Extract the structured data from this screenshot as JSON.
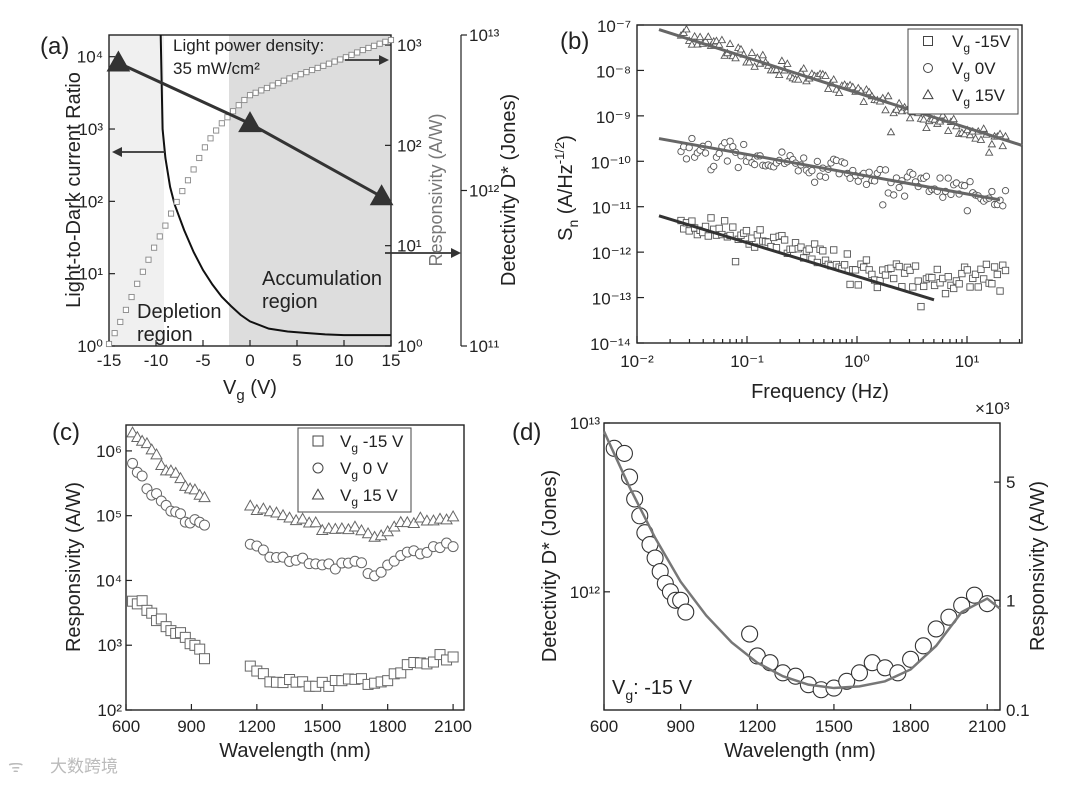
{
  "watermark": "大数跨境",
  "chart_data": [
    {
      "panel": "a",
      "panel_label": "(a)",
      "type": "line",
      "xlabel": "V",
      "xlabel_sub": "g",
      "xlabel_unit": " (V)",
      "ylabel_left": "Light-to-Dark current Ratio",
      "ylabel_right1": "Responsivity (A/W)",
      "ylabel_right2": "Detectivity D* (Jones)",
      "xlim": [
        -15,
        15
      ],
      "xticks": [
        "-15",
        "-10",
        "-5",
        "0",
        "5",
        "10",
        "15"
      ],
      "ylim_left_log10": [
        0,
        4.3
      ],
      "yticks_left": [
        "10⁰",
        "10¹",
        "10²",
        "10³",
        "10⁴"
      ],
      "yticks_right1": [
        "10⁰",
        "10¹",
        "10²",
        "10³"
      ],
      "yticks_right2": [
        "10¹¹",
        "10¹²",
        "10¹³"
      ],
      "annotation_power_1": "Light power density:",
      "annotation_power_2": "35 mW/cm²",
      "region_depletion_1": "Depletion",
      "region_depletion_2": "region",
      "region_accumulation_1": "Accumulation",
      "region_accumulation_2": "region",
      "shaded_regions": [
        {
          "from": -15,
          "to": -9.5,
          "shade": "#f0f0f0"
        },
        {
          "from": -2.5,
          "to": 15,
          "shade": "#dddddd"
        }
      ],
      "series": [
        {
          "name": "Light-to-Dark current Ratio",
          "axis": "left",
          "style": "solid-black",
          "x": [
            -9.5,
            -9.3,
            -9,
            -8.5,
            -8,
            -7,
            -6,
            -5,
            -4,
            -3,
            -2,
            -1,
            0,
            2,
            4,
            6,
            8,
            10,
            12,
            15
          ],
          "y": [
            4.3,
            3.0,
            2.6,
            2.2,
            1.95,
            1.6,
            1.3,
            1.05,
            0.85,
            0.68,
            0.55,
            0.43,
            0.34,
            0.24,
            0.2,
            0.18,
            0.16,
            0.15,
            0.15,
            0.15
          ]
        },
        {
          "name": "Responsivity",
          "axis": "right1",
          "style": "open-square-grey",
          "x": [
            -15,
            -14,
            -13,
            -12,
            -11,
            -10,
            -9,
            -8,
            -7,
            -6,
            -5,
            -4,
            -3,
            -2,
            -1,
            0,
            2,
            4,
            6,
            8,
            10,
            12,
            14,
            15
          ],
          "y": [
            0.02,
            0.2,
            0.4,
            0.62,
            0.82,
            1.02,
            1.2,
            1.4,
            1.58,
            1.76,
            1.95,
            2.1,
            2.22,
            2.32,
            2.42,
            2.5,
            2.58,
            2.66,
            2.73,
            2.8,
            2.87,
            2.95,
            3.02,
            3.05
          ]
        },
        {
          "name": "Detectivity D*",
          "axis": "right2",
          "style": "filled-triangle-line",
          "x": [
            -14,
            0,
            14
          ],
          "y": [
            12.82,
            12.43,
            11.96
          ]
        }
      ]
    },
    {
      "panel": "b",
      "panel_label": "(b)",
      "type": "scatter",
      "xlabel": "Frequency (Hz)",
      "ylabel": "S",
      "ylabel_sub": "n",
      "ylabel_unit": " (A/Hz",
      "ylabel_sup": "-1/2",
      "ylabel_close": ")",
      "xlim_log10": [
        -2,
        1.5
      ],
      "ylim_log10": [
        -14,
        -7
      ],
      "xticks": [
        "10⁻²",
        "10⁻¹",
        "10⁰",
        "10¹"
      ],
      "yticks": [
        "10⁻¹⁴",
        "10⁻¹³",
        "10⁻¹²",
        "10⁻¹¹",
        "10⁻¹⁰",
        "10⁻⁹",
        "10⁻⁸",
        "10⁻⁷"
      ],
      "legend_position": "top-right",
      "series": [
        {
          "name": "V",
          "sub": "g",
          "value": " -15V",
          "marker": "square",
          "start_log10": -11.3,
          "end_log10": -13.0,
          "fit_end_log10f": 0.7
        },
        {
          "name": "V",
          "sub": "g",
          "value": "    0V",
          "marker": "circle",
          "start_log10": -9.6,
          "end_log10": -10.8,
          "fit_end_log10f": 1.3
        },
        {
          "name": "V",
          "sub": "g",
          "value": " 15V",
          "marker": "triangle",
          "start_log10": -7.2,
          "end_log10": -9.6,
          "fit_end_log10f": 1.5
        }
      ]
    },
    {
      "panel": "c",
      "panel_label": "(c)",
      "type": "scatter",
      "xlabel": "Wavelength (nm)",
      "ylabel": "Responsivity (A/W)",
      "xlim": [
        600,
        2150
      ],
      "ylim_log10": [
        2,
        6.4
      ],
      "xticks": [
        "600",
        "900",
        "1200",
        "1500",
        "1800",
        "2100"
      ],
      "yticks": [
        "10²",
        "10³",
        "10⁴",
        "10⁵",
        "10⁶"
      ],
      "legend_position": "top-right",
      "series": [
        {
          "name": "V",
          "sub": "g",
          "value": " -15 V",
          "marker": "square",
          "x": [
            630,
            670,
            710,
            750,
            790,
            830,
            870,
            910,
            960,
            1170,
            1250,
            1350,
            1450,
            1550,
            1650,
            1750,
            1850,
            1950,
            2050,
            2100
          ],
          "y_log10": [
            3.7,
            3.65,
            3.5,
            3.38,
            3.28,
            3.18,
            3.1,
            3.0,
            2.85,
            2.63,
            2.48,
            2.43,
            2.38,
            2.42,
            2.5,
            2.42,
            2.6,
            2.72,
            2.82,
            2.8
          ]
        },
        {
          "name": "V",
          "sub": "g",
          "value": "   0 V",
          "marker": "circle",
          "x": [
            630,
            670,
            710,
            750,
            790,
            830,
            870,
            910,
            960,
            1170,
            1250,
            1350,
            1450,
            1550,
            1650,
            1750,
            1850,
            1950,
            2050,
            2100
          ],
          "y_log10": [
            5.8,
            5.6,
            5.4,
            5.25,
            5.1,
            5.0,
            4.95,
            4.9,
            4.8,
            4.6,
            4.42,
            4.35,
            4.25,
            4.2,
            4.28,
            4.08,
            4.35,
            4.45,
            4.55,
            4.55
          ]
        },
        {
          "name": "V",
          "sub": "g",
          "value": " 15 V",
          "marker": "triangle",
          "x": [
            630,
            670,
            710,
            750,
            790,
            830,
            870,
            910,
            960,
            1170,
            1250,
            1350,
            1450,
            1550,
            1650,
            1750,
            1850,
            1950,
            2050,
            2100
          ],
          "y_log10": [
            6.3,
            6.2,
            6.0,
            5.85,
            5.7,
            5.6,
            5.5,
            5.4,
            5.25,
            5.15,
            5.05,
            4.95,
            4.85,
            4.8,
            4.85,
            4.7,
            4.9,
            4.95,
            5.0,
            4.98
          ]
        }
      ]
    },
    {
      "panel": "d",
      "panel_label": "(d)",
      "type": "scatter",
      "xlabel": "Wavelength (nm)",
      "ylabel_left": "Detectivity D* (Jones)",
      "ylabel_right": "Responsivity (A/W)",
      "right_multiplier": "×10³",
      "xlim": [
        600,
        2150
      ],
      "ylim_left_log10": [
        11.3,
        13
      ],
      "xticks": [
        "600",
        "900",
        "1200",
        "1500",
        "1800",
        "2100"
      ],
      "yticks_left": [
        "10¹²",
        "10¹³"
      ],
      "yticks_right": [
        "0.1",
        "1",
        "5"
      ],
      "annotation_v": "V",
      "annotation_v_sub": "g",
      "annotation_v_val": ": -15 V",
      "series": [
        {
          "name": "Detectivity D*",
          "marker": "circle",
          "x": [
            640,
            680,
            700,
            720,
            740,
            760,
            780,
            800,
            820,
            840,
            860,
            880,
            900,
            920,
            1170,
            1200,
            1250,
            1300,
            1350,
            1400,
            1450,
            1500,
            1550,
            1600,
            1650,
            1700,
            1750,
            1800,
            1850,
            1900,
            1950,
            2000,
            2050,
            2100
          ],
          "y_log10": [
            12.85,
            12.82,
            12.68,
            12.55,
            12.45,
            12.35,
            12.28,
            12.2,
            12.12,
            12.05,
            12.0,
            11.95,
            11.95,
            11.88,
            11.75,
            11.62,
            11.58,
            11.52,
            11.5,
            11.45,
            11.42,
            11.43,
            11.47,
            11.52,
            11.58,
            11.55,
            11.52,
            11.6,
            11.68,
            11.78,
            11.85,
            11.92,
            11.98,
            11.93
          ]
        },
        {
          "name": "fit",
          "style": "grey-line",
          "x": [
            600,
            700,
            800,
            900,
            1000,
            1100,
            1200,
            1300,
            1400,
            1500,
            1600,
            1700,
            1800,
            1900,
            2000,
            2100,
            2150
          ],
          "y_log10": [
            12.95,
            12.62,
            12.32,
            12.06,
            11.86,
            11.7,
            11.58,
            11.5,
            11.45,
            11.43,
            11.44,
            11.47,
            11.54,
            11.68,
            11.88,
            11.96,
            11.9
          ]
        }
      ]
    }
  ]
}
